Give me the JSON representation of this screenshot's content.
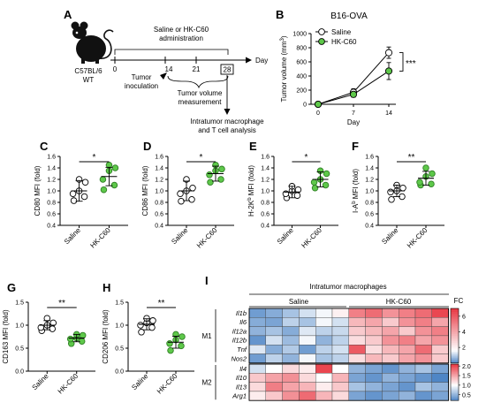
{
  "colors": {
    "green": "#5ec84a",
    "green_edge": "#2f7f24",
    "red": "#e8343f",
    "blue": "#4f86c6",
    "gray_line": "#777777"
  },
  "panel_a": {
    "letter": "A",
    "mouse_label": [
      "C57BL/6",
      "WT"
    ],
    "treatment_label": [
      "Saline or HK-C60",
      "administration"
    ],
    "axis_label": "Day",
    "ticks": [
      "0",
      "14",
      "21",
      "28"
    ],
    "inoculation_label": [
      "Tumor",
      "inoculation"
    ],
    "measurement_label": [
      "Tumor volume",
      "measurement"
    ],
    "analysis_label": [
      "Intratumor macrophage",
      "and T cell analysis"
    ]
  },
  "panel_b": {
    "letter": "B",
    "significance": "***",
    "chart_data": {
      "type": "line",
      "title": "B16-OVA",
      "xlabel": "Day",
      "ylabel": "Tumor volume (mm³)",
      "ylabel_main": "Tumor volume (mm",
      "ylabel_sup": "3",
      "ylabel_end": ")",
      "x": [
        0,
        7,
        14
      ],
      "x_ticks": [
        "0",
        "7",
        "14"
      ],
      "ylim": [
        0,
        1000
      ],
      "y_ticks": [
        "0",
        "200",
        "400",
        "600",
        "800",
        "1000"
      ],
      "series": [
        {
          "name": "Saline",
          "values": [
            0,
            170,
            730
          ],
          "err": [
            0,
            50,
            80
          ],
          "marker": "open-circle"
        },
        {
          "name": "HK-C60",
          "values": [
            0,
            140,
            470
          ],
          "err": [
            0,
            40,
            120
          ],
          "marker": "green-circle"
        }
      ],
      "legend": "top-left"
    }
  },
  "panels_scatter": [
    {
      "letter": "C",
      "significance": "*",
      "chart_data": {
        "type": "scatter",
        "ylabel": "CD80 MFI (fold)",
        "ylabel_main": "CD80 MFI (fold)",
        "ylabel_sup": "",
        "ylabel_end": "",
        "categories": [
          "Saline",
          "HK-C60"
        ],
        "ylim": [
          0.4,
          1.6
        ],
        "y_ticks": [
          "0.4",
          "0.6",
          "0.8",
          "1.0",
          "1.2",
          "1.4",
          "1.6"
        ],
        "groups": [
          {
            "name": "Saline",
            "values": [
              0.83,
              0.9,
              0.95,
              1.0,
              1.15,
              1.2
            ],
            "mean": 1.0,
            "sd": 0.18
          },
          {
            "name": "HK-C60",
            "values": [
              1.02,
              1.1,
              1.2,
              1.35,
              1.4,
              1.45
            ],
            "mean": 1.25,
            "sd": 0.16
          }
        ]
      }
    },
    {
      "letter": "D",
      "significance": "*",
      "chart_data": {
        "type": "scatter",
        "ylabel": "CD86 MFI (fold)",
        "ylabel_main": "CD86 MFI (fold)",
        "ylabel_sup": "",
        "ylabel_end": "",
        "categories": [
          "Saline",
          "HK-C60"
        ],
        "ylim": [
          0.4,
          1.6
        ],
        "y_ticks": [
          "0.4",
          "0.6",
          "0.8",
          "1.0",
          "1.2",
          "1.4",
          "1.6"
        ],
        "groups": [
          {
            "name": "Saline",
            "values": [
              0.82,
              0.85,
              0.95,
              1.0,
              1.05,
              1.2
            ],
            "mean": 1.0,
            "sd": 0.17
          },
          {
            "name": "HK-C60",
            "values": [
              1.15,
              1.2,
              1.28,
              1.35,
              1.38,
              1.45
            ],
            "mean": 1.3,
            "sd": 0.13
          }
        ]
      }
    },
    {
      "letter": "E",
      "significance": "*",
      "chart_data": {
        "type": "scatter",
        "ylabel": "H-2Kᵇ MFI (fold)",
        "ylabel_main": "H-2K",
        "ylabel_sup": "b",
        "ylabel_end": " MFI (fold)",
        "categories": [
          "Saline",
          "HK-C60"
        ],
        "ylim": [
          0.4,
          1.6
        ],
        "y_ticks": [
          "0.4",
          "0.6",
          "0.8",
          "1.0",
          "1.2",
          "1.4",
          "1.6"
        ],
        "groups": [
          {
            "name": "Saline",
            "values": [
              0.88,
              0.92,
              0.95,
              1.0,
              1.02,
              1.08
            ],
            "mean": 0.98,
            "sd": 0.1
          },
          {
            "name": "HK-C60",
            "values": [
              1.05,
              1.1,
              1.15,
              1.2,
              1.3,
              1.35
            ],
            "mean": 1.2,
            "sd": 0.13
          }
        ]
      }
    },
    {
      "letter": "F",
      "significance": "**",
      "chart_data": {
        "type": "scatter",
        "ylabel": "I-Aᵇ MFI (fold)",
        "ylabel_main": "I-A",
        "ylabel_sup": "b",
        "ylabel_end": " MFI (fold)",
        "categories": [
          "Saline",
          "HK-C60"
        ],
        "ylim": [
          0.4,
          1.6
        ],
        "y_ticks": [
          "0.4",
          "0.6",
          "0.8",
          "1.0",
          "1.2",
          "1.4",
          "1.6"
        ],
        "groups": [
          {
            "name": "Saline",
            "values": [
              0.85,
              0.9,
              0.98,
              1.0,
              1.05,
              1.1
            ],
            "mean": 1.0,
            "sd": 0.1
          },
          {
            "name": "HK-C60",
            "values": [
              1.1,
              1.12,
              1.15,
              1.25,
              1.3,
              1.4
            ],
            "mean": 1.22,
            "sd": 0.12
          }
        ]
      }
    },
    {
      "letter": "G",
      "significance": "**",
      "chart_data": {
        "type": "scatter",
        "ylabel": "CD163 MFI (fold)",
        "ylabel_main": "CD163 MFI (fold)",
        "ylabel_sup": "",
        "ylabel_end": "",
        "categories": [
          "Saline",
          "HK-C60"
        ],
        "ylim": [
          0.0,
          1.5
        ],
        "y_ticks": [
          "0.0",
          "0.5",
          "1.0",
          "1.5"
        ],
        "groups": [
          {
            "name": "Saline",
            "values": [
              0.88,
              0.92,
              0.95,
              1.0,
              1.05,
              1.15
            ],
            "mean": 1.0,
            "sd": 0.1
          },
          {
            "name": "HK-C60",
            "values": [
              0.6,
              0.65,
              0.7,
              0.72,
              0.78,
              0.8
            ],
            "mean": 0.72,
            "sd": 0.08
          }
        ]
      }
    },
    {
      "letter": "H",
      "significance": "**",
      "chart_data": {
        "type": "scatter",
        "ylabel": "CD206 MFI (fold)",
        "ylabel_main": "CD206 MFI (fold)",
        "ylabel_sup": "",
        "ylabel_end": "",
        "categories": [
          "Saline",
          "HK-C60"
        ],
        "ylim": [
          0.0,
          1.5
        ],
        "y_ticks": [
          "0.0",
          "0.5",
          "1.0",
          "1.5"
        ],
        "groups": [
          {
            "name": "Saline",
            "values": [
              0.85,
              0.95,
              1.0,
              1.05,
              1.1,
              1.15
            ],
            "mean": 1.02,
            "sd": 0.12
          },
          {
            "name": "HK-C60",
            "values": [
              0.45,
              0.55,
              0.6,
              0.68,
              0.75,
              0.8
            ],
            "mean": 0.63,
            "sd": 0.13
          }
        ]
      }
    }
  ],
  "panel_i": {
    "letter": "I",
    "header": "Intratumor macrophages",
    "group_labels": [
      "Saline",
      "HK-C60"
    ],
    "fc_label": "FC",
    "chart_data": {
      "type": "heatmap",
      "columns": 12,
      "blocks": [
        {
          "name": "M1",
          "rows": [
            "Il1b",
            "Il6",
            "Il12a",
            "Il12b",
            "Tnf",
            "Nos2"
          ],
          "values": [
            [
              0.3,
              0.5,
              0.8,
              1.2,
              1.5,
              2.0,
              5.0,
              5.5,
              4.5,
              5.0,
              5.5,
              6.5
            ],
            [
              0.5,
              0.4,
              1.0,
              0.8,
              1.5,
              1.2,
              3.5,
              4.0,
              3.0,
              4.5,
              5.0,
              4.0
            ],
            [
              0.6,
              0.8,
              0.5,
              1.3,
              1.0,
              1.1,
              3.0,
              3.5,
              4.0,
              3.0,
              4.5,
              5.0
            ],
            [
              0.2,
              1.2,
              0.7,
              1.5,
              0.6,
              1.0,
              2.5,
              3.0,
              4.5,
              5.0,
              4.0,
              4.5
            ],
            [
              1.3,
              0.5,
              0.9,
              0.3,
              1.0,
              1.2,
              6.0,
              2.5,
              3.5,
              4.0,
              5.5,
              3.0
            ],
            [
              0.3,
              1.0,
              0.6,
              1.5,
              0.8,
              1.0,
              2.5,
              3.5,
              3.0,
              4.0,
              4.5,
              3.0
            ]
          ],
          "scale_ticks": [
            "2",
            "4",
            "6"
          ],
          "scale_range": [
            0,
            7
          ]
        },
        {
          "name": "M2",
          "rows": [
            "Il4",
            "Il10",
            "Il13",
            "Arg1"
          ],
          "values": [
            [
              0.8,
              1.0,
              1.2,
              1.1,
              2.0,
              1.0,
              0.5,
              0.4,
              0.3,
              0.5,
              0.6,
              0.4
            ],
            [
              1.3,
              1.5,
              1.6,
              1.2,
              1.0,
              1.4,
              0.4,
              0.3,
              0.5,
              0.4,
              0.3,
              0.2
            ],
            [
              1.2,
              1.7,
              1.5,
              1.4,
              1.1,
              1.3,
              0.6,
              0.5,
              0.4,
              0.3,
              0.6,
              0.5
            ],
            [
              1.1,
              1.3,
              1.6,
              1.8,
              1.4,
              1.2,
              0.4,
              0.3,
              0.4,
              0.5,
              0.3,
              0.4
            ]
          ],
          "scale_ticks": [
            "0.5",
            "1.0",
            "1.5",
            "2.0"
          ],
          "scale_range": [
            0.2,
            2.1
          ]
        }
      ]
    }
  }
}
